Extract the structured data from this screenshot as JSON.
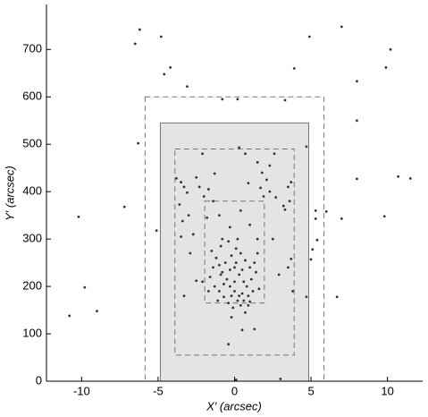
{
  "chart_data": {
    "type": "scatter",
    "x_label": "X′ (arcsec)",
    "y_label": "Y′ (arcsec)",
    "xlim": [
      -12.3,
      12.3
    ],
    "ylim": [
      0,
      795
    ],
    "xticks": [
      -10,
      -5,
      0,
      5,
      10
    ],
    "yticks": [
      0,
      100,
      200,
      300,
      400,
      500,
      600,
      700
    ],
    "regions": [
      {
        "x": [
          -4.85,
          4.85
        ],
        "y": [
          0,
          545
        ],
        "fill": "#e4e4e4",
        "stroke": "#777",
        "dashed": false
      },
      {
        "x": [
          -5.85,
          5.85
        ],
        "y": [
          0,
          600
        ],
        "fill": "none",
        "stroke": "#777",
        "dashed": true
      },
      {
        "x": [
          -3.9,
          3.9
        ],
        "y": [
          55,
          490
        ],
        "fill": "none",
        "stroke": "#777",
        "dashed": true
      },
      {
        "x": [
          -1.95,
          1.95
        ],
        "y": [
          165,
          380
        ],
        "fill": "none",
        "stroke": "#777",
        "dashed": true
      }
    ],
    "series": [
      {
        "color": "#333333",
        "x": [
          -10.8,
          -9.8,
          -9.0,
          -10.2,
          -7.2,
          -6.5,
          -6.2,
          -4.8,
          -4.6,
          -4.2,
          -6.3,
          -5.1,
          -3.1,
          -0.8,
          0.2,
          3.3,
          3.9,
          4.9,
          7.0,
          8.0,
          8.0,
          9.9,
          10.2,
          8.0,
          9.8,
          10.7,
          11.5,
          7.0,
          6.7,
          5.3,
          5.3,
          5.4,
          5.1,
          5.0,
          4.7,
          6.0,
          3.0,
          -0.4,
          0.1,
          0.5,
          4.7,
          2.6,
          -3.8,
          -3.5,
          -3.3,
          -3.1,
          -3.6,
          -3.4,
          -3.0,
          -2.5,
          -2.3,
          -2.0,
          -1.7,
          -1.4,
          -1.3,
          -2.1,
          -1.0,
          -1.8,
          -2.7,
          -2.9,
          -3.3,
          -2.5,
          -2.1,
          -3.5,
          0.3,
          0.7,
          1.5,
          1.8,
          2.1,
          1.7,
          2.3,
          1.9,
          2.7,
          3.2,
          3.6,
          3.7,
          3.5,
          3.3,
          3.5,
          3.7,
          2.3,
          0.9,
          0.4,
          -0.3,
          -0.8,
          1.0,
          1.5,
          2.5,
          2.9,
          3.8,
          -0.2,
          1.3,
          1.0,
          -1.5,
          -1.2,
          -1.0,
          -0.8,
          -0.5,
          -0.3,
          0,
          0.3,
          0.6,
          0.9,
          -1.3,
          -1.0,
          -0.7,
          -0.4,
          -0.1,
          0.2,
          0.5,
          0.8,
          1.1,
          1.4,
          -0.6,
          -0.2,
          0.1,
          0.4,
          0.7,
          1.0,
          1.3,
          -0.9,
          0.0,
          0.3,
          -0.3,
          0.6,
          -1.6,
          1.6,
          -1.1,
          0.9,
          -0.4,
          0.2,
          0.5,
          -0.7,
          1.2,
          -1.4,
          0.0,
          0.7,
          -0.2,
          0.4,
          -0.9,
          1.5,
          -1.7,
          0.1
        ],
        "values": [
          138,
          198,
          148,
          347,
          368,
          712,
          742,
          727,
          648,
          662,
          502,
          318,
          622,
          595,
          595,
          593,
          660,
          727,
          748,
          633,
          550,
          662,
          700,
          427,
          348,
          432,
          428,
          343,
          178,
          360,
          343,
          298,
          278,
          257,
          178,
          358,
          5,
          78,
          3,
          108,
          495,
          480,
          428,
          420,
          410,
          398,
          373,
          338,
          350,
          430,
          410,
          390,
          405,
          380,
          438,
          480,
          350,
          345,
          310,
          270,
          180,
          212,
          210,
          305,
          493,
          480,
          462,
          440,
          425,
          408,
          400,
          390,
          388,
          370,
          380,
          420,
          410,
          362,
          240,
          258,
          455,
          418,
          360,
          325,
          300,
          330,
          300,
          300,
          225,
          190,
          135,
          110,
          168,
          275,
          260,
          245,
          230,
          215,
          200,
          190,
          180,
          170,
          160,
          200,
          190,
          178,
          165,
          155,
          170,
          185,
          200,
          215,
          230,
          250,
          265,
          280,
          270,
          255,
          240,
          250,
          285,
          240,
          225,
          235,
          210,
          220,
          195,
          170,
          180,
          295,
          300,
          235,
          205,
          190,
          240,
          210,
          145,
          180,
          160,
          225,
          270,
          190,
          250
        ]
      }
    ]
  }
}
